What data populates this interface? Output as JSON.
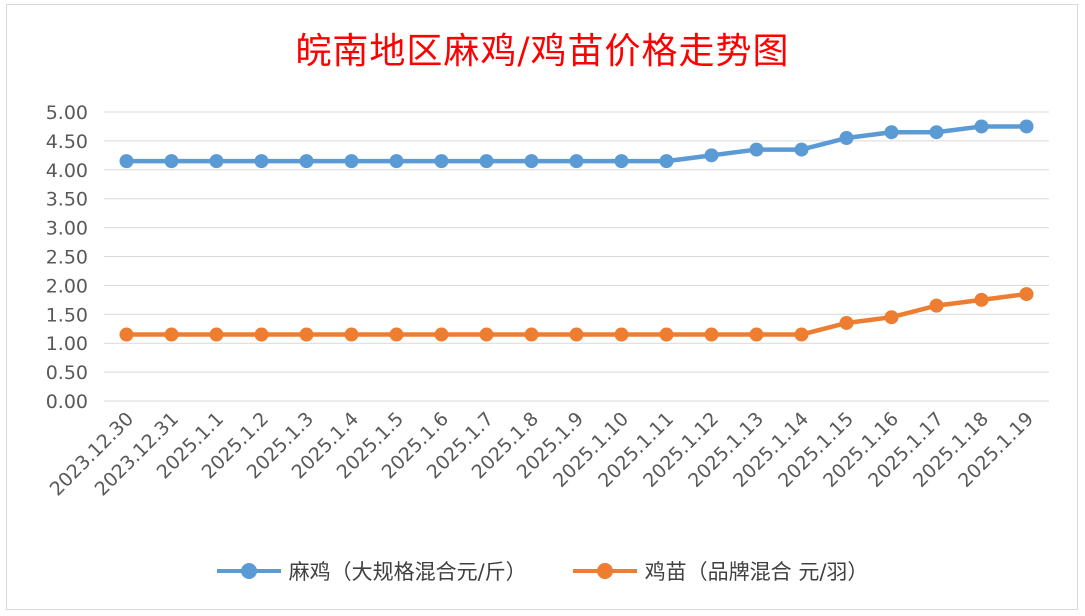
{
  "chart_data": {
    "type": "line",
    "title": "皖南地区麻鸡/鸡苗价格走势图",
    "categories": [
      "2023.12.30",
      "2023.12.31",
      "2025.1.1",
      "2025.1.2",
      "2025.1.3",
      "2025.1.4",
      "2025.1.5",
      "2025.1.6",
      "2025.1.7",
      "2025.1.8",
      "2025.1.9",
      "2025.1.10",
      "2025.1.11",
      "2025.1.12",
      "2025.1.13",
      "2025.1.14",
      "2025.1.15",
      "2025.1.16",
      "2025.1.17",
      "2025.1.18",
      "2025.1.19"
    ],
    "y_ticks": [
      "0.00",
      "0.50",
      "1.00",
      "1.50",
      "2.00",
      "2.50",
      "3.00",
      "3.50",
      "4.00",
      "4.50",
      "5.00"
    ],
    "ylim": [
      0,
      5
    ],
    "grid": true,
    "legend_position": "bottom",
    "series": [
      {
        "name": "麻鸡（大规格混合元/斤）",
        "color": "#5b9bd5",
        "values": [
          4.15,
          4.15,
          4.15,
          4.15,
          4.15,
          4.15,
          4.15,
          4.15,
          4.15,
          4.15,
          4.15,
          4.15,
          4.15,
          4.25,
          4.35,
          4.35,
          4.55,
          4.65,
          4.65,
          4.75,
          4.75
        ]
      },
      {
        "name": "鸡苗（品牌混合 元/羽）",
        "color": "#ed7d31",
        "values": [
          1.15,
          1.15,
          1.15,
          1.15,
          1.15,
          1.15,
          1.15,
          1.15,
          1.15,
          1.15,
          1.15,
          1.15,
          1.15,
          1.15,
          1.15,
          1.15,
          1.35,
          1.45,
          1.65,
          1.75,
          1.85
        ]
      }
    ]
  }
}
